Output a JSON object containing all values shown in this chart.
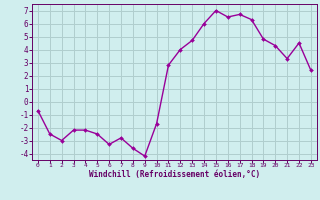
{
  "x": [
    0,
    1,
    2,
    3,
    4,
    5,
    6,
    7,
    8,
    9,
    10,
    11,
    12,
    13,
    14,
    15,
    16,
    17,
    18,
    19,
    20,
    21,
    22,
    23
  ],
  "y": [
    -0.7,
    -2.5,
    -3.0,
    -2.2,
    -2.2,
    -2.5,
    -3.3,
    -2.8,
    -3.6,
    -4.2,
    -1.7,
    2.8,
    4.0,
    4.7,
    6.0,
    7.0,
    6.5,
    6.7,
    6.3,
    4.8,
    4.3,
    3.3,
    4.5,
    2.4
  ],
  "line_color": "#990099",
  "marker_color": "#990099",
  "bg_color": "#d0eeee",
  "grid_color": "#b0cece",
  "axis_color": "#660066",
  "xlabel": "Windchill (Refroidissement éolien,°C)",
  "ylim": [
    -4.5,
    7.5
  ],
  "xlim": [
    -0.5,
    23.5
  ],
  "yticks": [
    -4,
    -3,
    -2,
    -1,
    0,
    1,
    2,
    3,
    4,
    5,
    6,
    7
  ],
  "xticks": [
    0,
    1,
    2,
    3,
    4,
    5,
    6,
    7,
    8,
    9,
    10,
    11,
    12,
    13,
    14,
    15,
    16,
    17,
    18,
    19,
    20,
    21,
    22,
    23
  ],
  "ytick_fontsize": 5.5,
  "xtick_fontsize": 4.5,
  "xlabel_fontsize": 5.5
}
